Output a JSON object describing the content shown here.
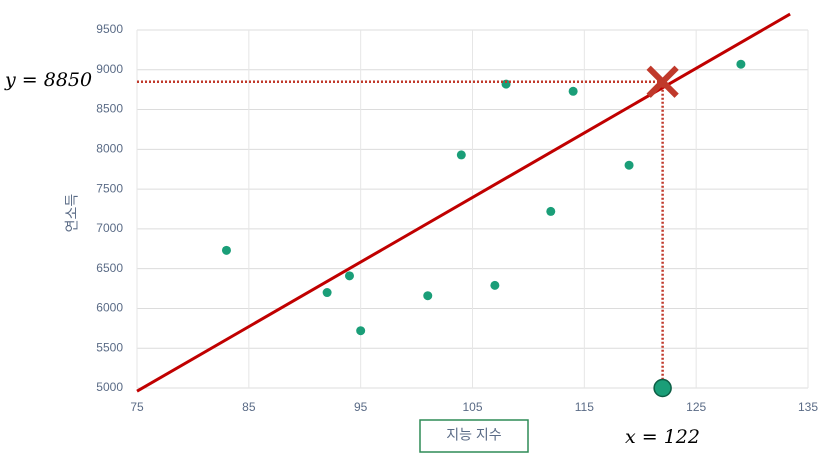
{
  "chart_data": {
    "type": "scatter",
    "x": [
      83,
      92,
      94,
      95,
      101,
      104,
      107,
      108,
      112,
      114,
      119,
      129
    ],
    "values": [
      6730,
      6200,
      6410,
      5720,
      6160,
      7930,
      6290,
      8820,
      7220,
      8730,
      7800,
      9070
    ],
    "color": "#1a9e78",
    "trend_line": {
      "x": [
        75,
        133.4
      ],
      "y": [
        4960,
        9700
      ],
      "color": "#c00000"
    },
    "prediction": {
      "x": 122,
      "y": 8850,
      "x_label": "x = 122",
      "y_label": "y = 8850",
      "color": "#c0392b"
    },
    "xlabel": "지능 지수",
    "ylabel": "연소득",
    "xlim": [
      75,
      135
    ],
    "xticks": [
      75,
      85,
      95,
      105,
      115,
      125,
      135
    ],
    "ylim": [
      5000,
      9500
    ],
    "yticks": [
      5000,
      5500,
      6000,
      6500,
      7000,
      7500,
      8000,
      8500,
      9000,
      9500
    ],
    "grid": true
  }
}
